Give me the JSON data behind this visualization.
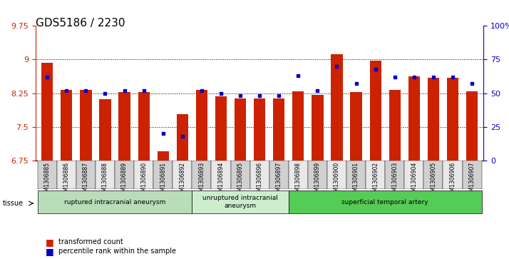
{
  "title": "GDS5186 / 2230",
  "samples": [
    "GSM1306885",
    "GSM1306886",
    "GSM1306887",
    "GSM1306888",
    "GSM1306889",
    "GSM1306890",
    "GSM1306891",
    "GSM1306892",
    "GSM1306893",
    "GSM1306894",
    "GSM1306895",
    "GSM1306896",
    "GSM1306897",
    "GSM1306898",
    "GSM1306899",
    "GSM1306900",
    "GSM1306901",
    "GSM1306902",
    "GSM1306903",
    "GSM1306904",
    "GSM1306905",
    "GSM1306906",
    "GSM1306907"
  ],
  "transformed_count": [
    8.93,
    8.32,
    8.32,
    8.12,
    8.28,
    8.28,
    6.96,
    7.78,
    8.32,
    8.18,
    8.14,
    8.14,
    8.14,
    8.3,
    8.22,
    9.12,
    8.28,
    8.98,
    8.32,
    8.62,
    8.6,
    8.6,
    8.3
  ],
  "percentile_rank": [
    62,
    52,
    52,
    50,
    52,
    52,
    20,
    18,
    52,
    50,
    48,
    48,
    48,
    63,
    52,
    70,
    57,
    68,
    62,
    62,
    62,
    62,
    57
  ],
  "ymin": 6.75,
  "ymax": 9.75,
  "yticks": [
    6.75,
    7.5,
    8.25,
    9.0,
    9.75
  ],
  "ytick_labels": [
    "6.75",
    "7.5",
    "8.25",
    "9",
    "9.75"
  ],
  "right_yticks": [
    0,
    25,
    50,
    75,
    100
  ],
  "right_ytick_labels": [
    "0",
    "25",
    "50",
    "75",
    "100%"
  ],
  "bar_color": "#cc2200",
  "dot_color": "#0000cc",
  "grid_color": "#000000",
  "groups": [
    {
      "label": "ruptured intracranial aneurysm",
      "start": 0,
      "end": 8,
      "color": "#aaddaa"
    },
    {
      "label": "unruptured intracranial\naneurysm",
      "start": 8,
      "end": 13,
      "color": "#cceecc"
    },
    {
      "label": "superficial temporal artery",
      "start": 13,
      "end": 23,
      "color": "#44bb44"
    }
  ],
  "tissue_label": "tissue",
  "legend_items": [
    {
      "label": "transformed count",
      "color": "#cc2200",
      "marker": "s"
    },
    {
      "label": "percentile rank within the sample",
      "color": "#0000cc",
      "marker": "s"
    }
  ],
  "bg_color": "#e8e8e8",
  "plot_bg": "#ffffff",
  "title_fontsize": 11,
  "axis_fontsize": 7.5
}
